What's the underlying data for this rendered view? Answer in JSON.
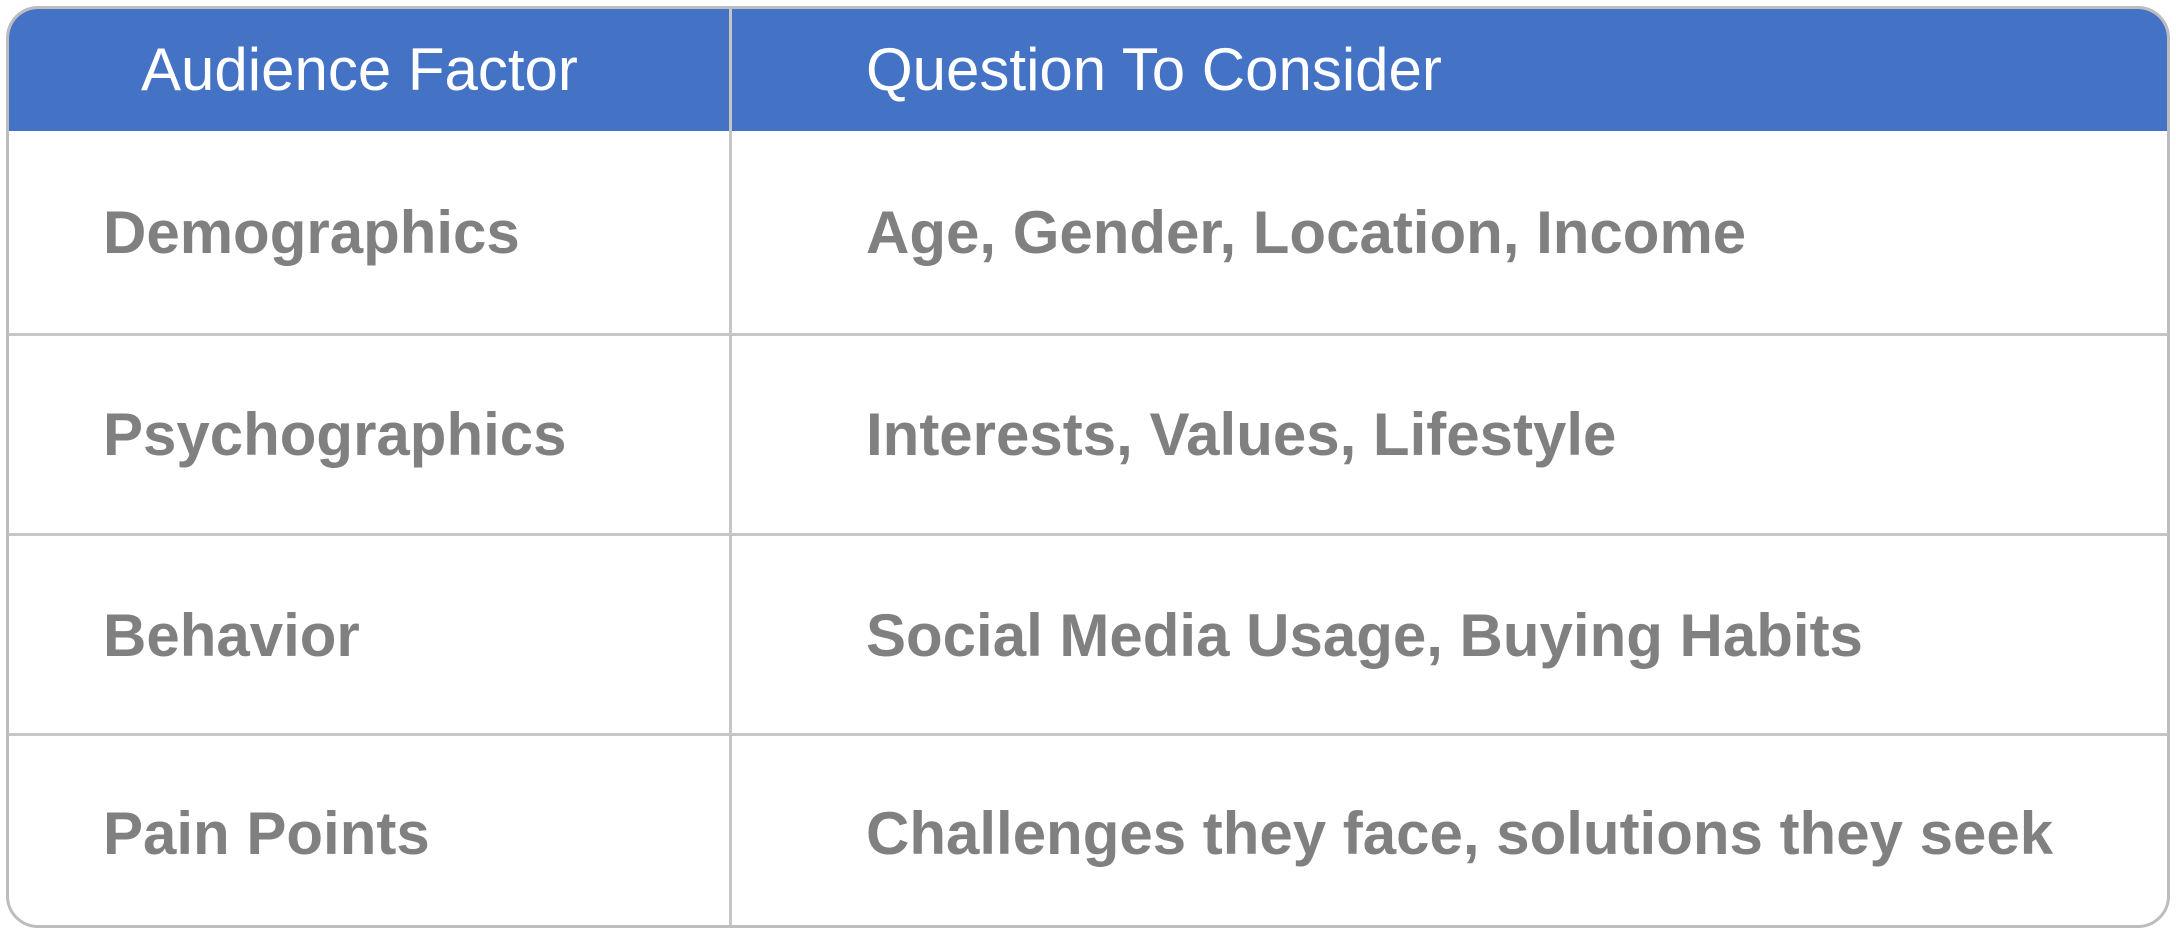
{
  "table": {
    "headers": [
      "Audience Factor",
      "Question To Consider"
    ],
    "rows": [
      [
        "Demographics",
        "Age, Gender, Location, Income"
      ],
      [
        "Psychographics",
        "Interests, Values, Lifestyle"
      ],
      [
        "Behavior",
        "Social Media Usage, Buying Habits"
      ],
      [
        "Pain Points",
        "Challenges they face, solutions they seek"
      ]
    ]
  },
  "colors": {
    "header_background": "#4472c4",
    "header_text": "#ffffff",
    "body_text": "#808080",
    "border": "#bdbdbd"
  }
}
